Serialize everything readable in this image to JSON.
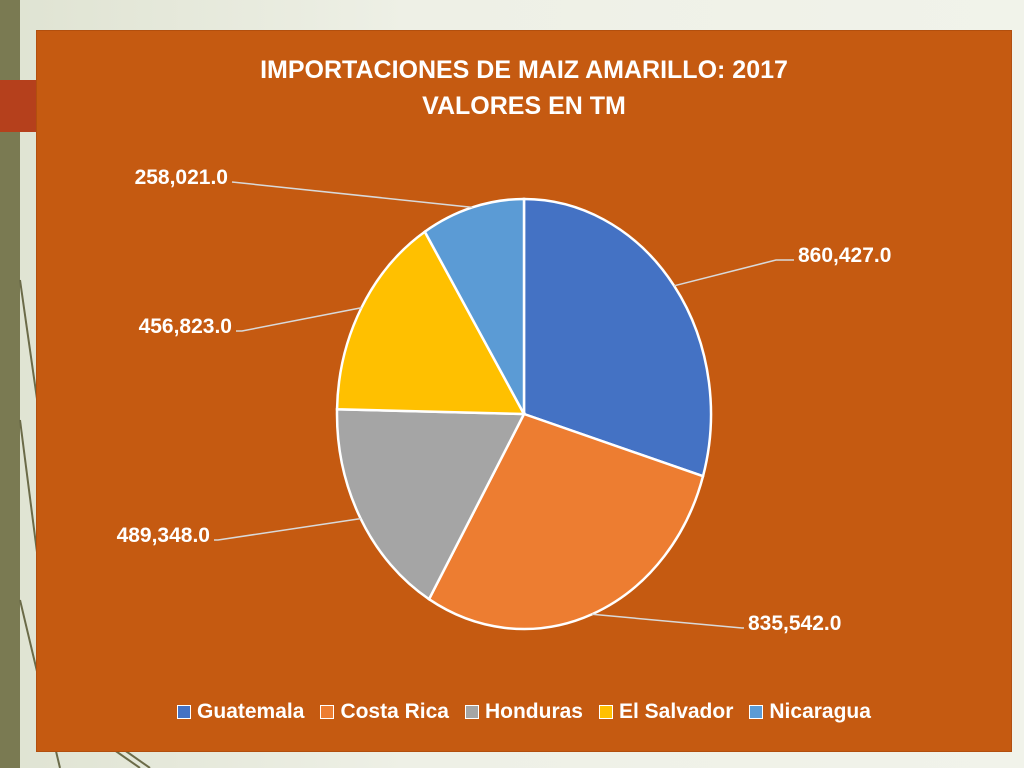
{
  "chart_data": {
    "type": "pie",
    "title": "IMPORTACIONES DE MAIZ AMARILLO: 2017",
    "subtitle": "VALORES EN TM",
    "categories": [
      "Guatemala",
      "Costa Rica",
      "Honduras",
      "El Salvador",
      "Nicaragua"
    ],
    "values": [
      860427.0,
      835542.0,
      489348.0,
      456823.0,
      258021.0
    ],
    "value_labels": [
      "860,427.0",
      "835,542.0",
      "489,348.0",
      "456,823.0",
      "258,021.0"
    ],
    "colors": [
      "#4472c4",
      "#ed7d31",
      "#a5a5a5",
      "#ffc000",
      "#5b9bd5"
    ],
    "legend_position": "bottom"
  },
  "background": {
    "card_color": "#c55a11"
  }
}
